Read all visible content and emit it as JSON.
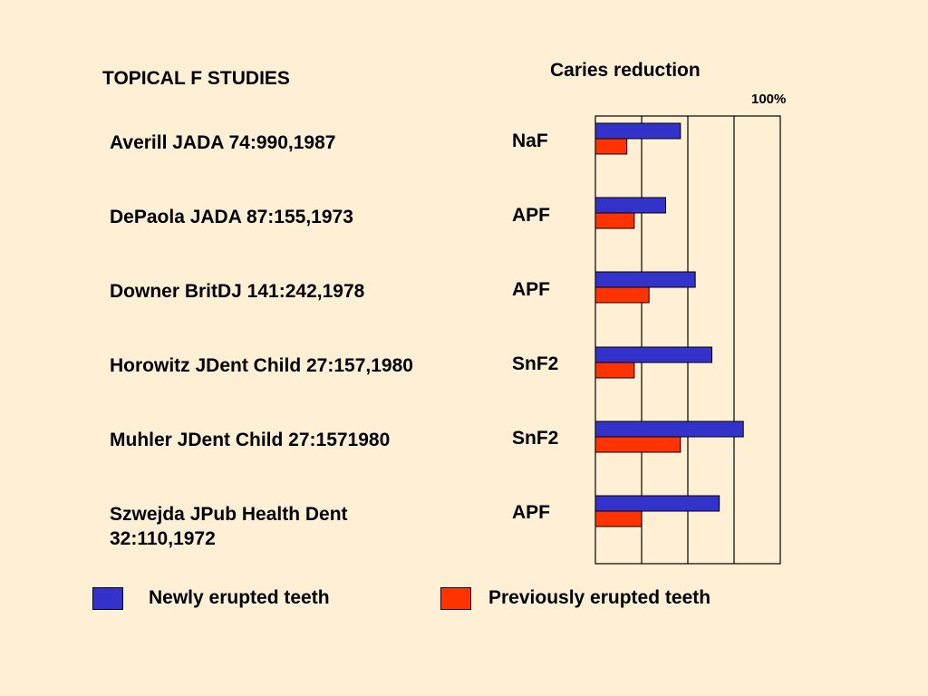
{
  "heading": "TOPICAL F STUDIES",
  "colors": {
    "background": "#FFEFD5",
    "newly": "#3333CC",
    "previously": "#FF3300"
  },
  "chart_data": {
    "type": "bar",
    "orientation": "horizontal",
    "title": "Caries reduction",
    "max_label": "100%",
    "xlim": [
      0,
      100
    ],
    "grid": true,
    "categories": [
      "Averill JADA 74:990,1987",
      "DePaola JADA 87:155,1973",
      "Downer BritDJ 141:242,1978",
      "Horowitz JDent Child 27:157,1980",
      "Muhler JDent Child 27:1571980",
      "Szwejda JPub Health Dent 32:110,1972"
    ],
    "agents": [
      "NaF",
      "APF",
      "APF",
      "SnF2",
      "SnF2",
      "APF"
    ],
    "series": [
      {
        "name": "Newly erupted teeth",
        "values": [
          46,
          38,
          54,
          63,
          80,
          67
        ]
      },
      {
        "name": "Previously erupted teeth",
        "values": [
          17,
          21,
          29,
          21,
          46,
          25
        ]
      }
    ]
  }
}
